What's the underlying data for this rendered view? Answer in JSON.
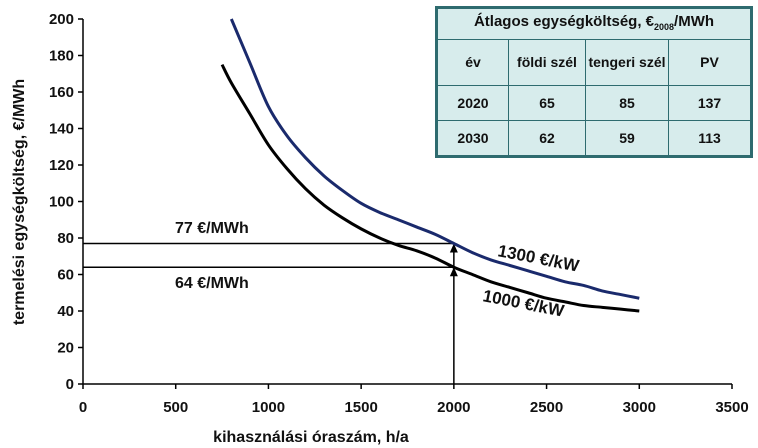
{
  "chart_data": {
    "type": "line",
    "xlabel": "kihasználási óraszám, h/a",
    "ylabel": "termelési egységköltség, €/MWh",
    "xlim": [
      0,
      3500
    ],
    "ylim": [
      0,
      200
    ],
    "x_ticks": [
      0,
      500,
      1000,
      1500,
      2000,
      2500,
      3000,
      3500
    ],
    "y_ticks": [
      0,
      20,
      40,
      60,
      80,
      100,
      120,
      140,
      160,
      180,
      200
    ],
    "grid": false,
    "series": [
      {
        "name": "1300 €/kW",
        "color": "#1a2a6c",
        "points": [
          [
            800,
            200
          ],
          [
            900,
            176
          ],
          [
            1000,
            152
          ],
          [
            1100,
            136
          ],
          [
            1200,
            124
          ],
          [
            1300,
            114
          ],
          [
            1400,
            106
          ],
          [
            1500,
            99
          ],
          [
            1600,
            94
          ],
          [
            1700,
            90
          ],
          [
            1800,
            86
          ],
          [
            1900,
            82
          ],
          [
            2000,
            77
          ],
          [
            2100,
            72
          ],
          [
            2200,
            68
          ],
          [
            2300,
            65
          ],
          [
            2400,
            62
          ],
          [
            2500,
            59
          ],
          [
            2600,
            56
          ],
          [
            2700,
            54
          ],
          [
            2800,
            51
          ],
          [
            2900,
            49
          ],
          [
            3000,
            47
          ]
        ]
      },
      {
        "name": "1000 €/kW",
        "color": "#000000",
        "points": [
          [
            750,
            175
          ],
          [
            800,
            165
          ],
          [
            900,
            148
          ],
          [
            1000,
            131
          ],
          [
            1100,
            118
          ],
          [
            1200,
            107
          ],
          [
            1300,
            98
          ],
          [
            1400,
            91
          ],
          [
            1500,
            85
          ],
          [
            1600,
            80
          ],
          [
            1700,
            76
          ],
          [
            1800,
            73
          ],
          [
            1900,
            69
          ],
          [
            2000,
            64
          ],
          [
            2100,
            60
          ],
          [
            2200,
            56
          ],
          [
            2300,
            53
          ],
          [
            2400,
            50
          ],
          [
            2500,
            47
          ],
          [
            2600,
            45
          ],
          [
            2700,
            43
          ],
          [
            2800,
            42
          ],
          [
            2900,
            41
          ],
          [
            3000,
            40
          ]
        ]
      }
    ],
    "annotations": [
      {
        "text": "77 €/MWh",
        "value": 77
      },
      {
        "text": "64 €/MWh",
        "value": 64
      }
    ],
    "marker_x": 2000,
    "table": {
      "title_prefix": "Átlagos egységköltség,  €",
      "title_sub": "2008",
      "title_suffix": "/MWh",
      "headers": [
        "év",
        "földi szél",
        "tengeri szél",
        "PV"
      ],
      "rows": [
        [
          "2020",
          "65",
          "85",
          "137"
        ],
        [
          "2030",
          "62",
          "59",
          "113"
        ]
      ]
    }
  }
}
